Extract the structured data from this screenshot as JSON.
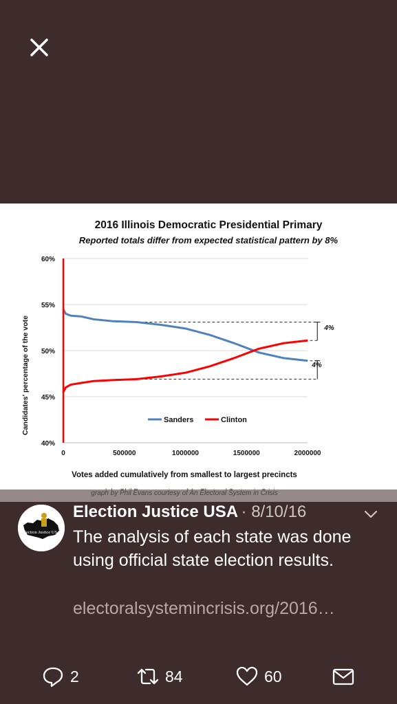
{
  "close_icon": "close-icon",
  "chart_data": {
    "type": "line",
    "title": "2016 Illinois Democratic Presidential Primary",
    "subtitle": "Reported totals differ from expected statistical pattern by 8%",
    "xlabel": "Votes added cumulatively from smallest to largest precincts",
    "ylabel": "Candidates' percentage of the vote",
    "credit": "graph by Phil Evans courtesy of An Electoral System in Crisis",
    "xlim": [
      0,
      2000000
    ],
    "ylim": [
      40,
      60
    ],
    "x_ticks": [
      "0",
      "500000",
      "1000000",
      "1500000",
      "2000000"
    ],
    "y_ticks": [
      "40%",
      "45%",
      "50%",
      "55%",
      "60%"
    ],
    "grid": true,
    "legend": "bottom-center",
    "series": [
      {
        "name": "Sanders",
        "color": "#4f81bd",
        "x": [
          0,
          20000,
          60000,
          150000,
          250000,
          400000,
          600000,
          800000,
          1000000,
          1200000,
          1400000,
          1600000,
          1800000,
          2000000
        ],
        "y": [
          54.5,
          54.0,
          53.8,
          53.7,
          53.4,
          53.2,
          53.1,
          52.8,
          52.4,
          51.7,
          50.8,
          49.8,
          49.2,
          48.9
        ]
      },
      {
        "name": "Clinton",
        "color": "#ff0000",
        "x": [
          0,
          20000,
          60000,
          150000,
          250000,
          400000,
          600000,
          800000,
          1000000,
          1200000,
          1400000,
          1600000,
          1800000,
          2000000
        ],
        "y": [
          45.5,
          46.0,
          46.3,
          46.5,
          46.7,
          46.8,
          46.9,
          47.2,
          47.6,
          48.3,
          49.2,
          50.2,
          50.8,
          51.1
        ]
      }
    ],
    "annotations": [
      {
        "text": "4%",
        "y_from": 53.1,
        "y_to": 51.1
      },
      {
        "text": "4%",
        "y_from": 48.9,
        "y_to": 46.9
      }
    ],
    "reference_lines": [
      53.1,
      46.9
    ]
  },
  "tweet": {
    "author_name": "Election Justice USA",
    "date": "· 8/10/16",
    "text": "The analysis of each state was done using official state election results.",
    "link": "electoralsystemincrisis.org/2016…",
    "avatar_text": "Election Justice USA"
  },
  "actions": {
    "reply_count": "2",
    "retweet_count": "84",
    "like_count": "60"
  }
}
